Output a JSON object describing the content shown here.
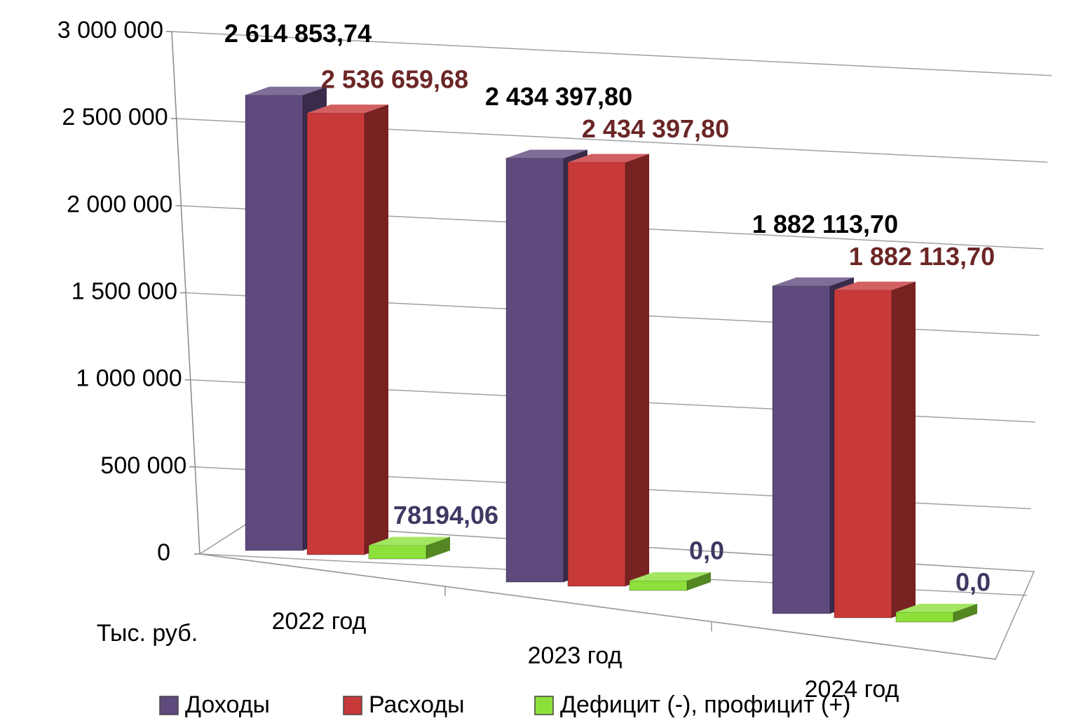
{
  "chart_data": {
    "type": "bar3d",
    "y_label": "Тыс. руб.",
    "categories": [
      "2022 год",
      "2023 год",
      "2024 год"
    ],
    "series": [
      {
        "name": "Доходы",
        "color": "#5f4a7e",
        "label_color": "#000000",
        "values": [
          2614853.74,
          2434397.8,
          1882113.7
        ],
        "value_labels": [
          "2 614 853,74",
          "2 434 397,80",
          "1 882 113,70"
        ]
      },
      {
        "name": "Расходы",
        "color": "#c8393a",
        "label_color": "#6b2626",
        "values": [
          2536659.68,
          2434397.8,
          1882113.7
        ],
        "value_labels": [
          "2 536 659,68",
          "2 434 397,80",
          "1 882 113,70"
        ]
      },
      {
        "name": "Дефицит (-), профицит (+)",
        "color": "#8de03a",
        "label_color": "#3e3862",
        "values": [
          78194.06,
          0,
          0
        ],
        "value_labels": [
          "78194,06",
          "0,0",
          "0,0"
        ]
      }
    ],
    "ylim": [
      0,
      3000000
    ],
    "yticks": [
      0,
      {
        "value": 500000,
        "label": "500 000"
      },
      {
        "value": 1000000,
        "label": "1 000 000"
      },
      {
        "value": 1500000,
        "label": "1 500 000"
      },
      {
        "value": 2000000,
        "label": "2 000 000"
      },
      {
        "value": 2500000,
        "label": "2 500 000"
      },
      {
        "value": 3000000,
        "label": "3 000 000"
      }
    ],
    "grid": true,
    "legend": "bottom"
  }
}
